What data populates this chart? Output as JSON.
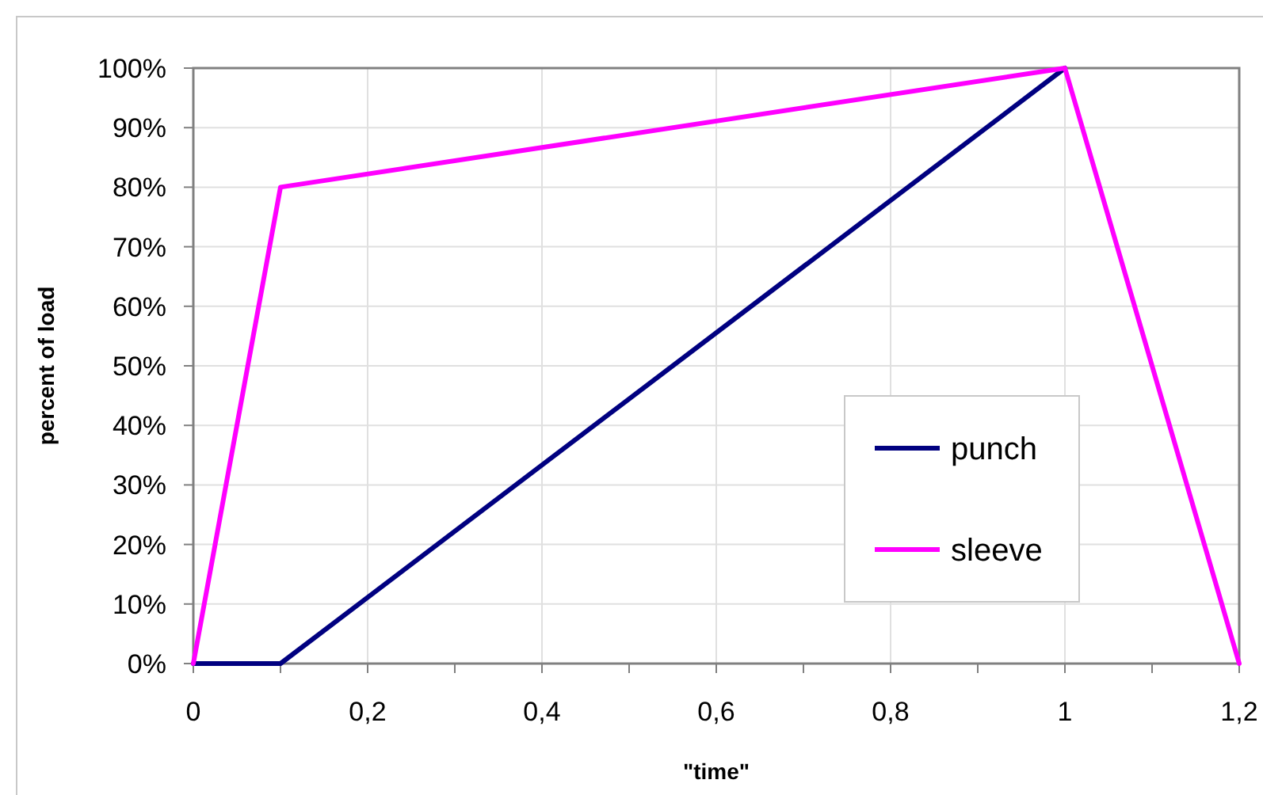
{
  "chart_data": {
    "type": "line",
    "xlabel": "\"time\"",
    "ylabel": "percent of load",
    "xlim": [
      0,
      1.2
    ],
    "xticks": [
      0,
      {
        "value": 0.1,
        "label": null
      },
      {
        "value": 0.2,
        "label": "0,2"
      },
      {
        "value": 0.3,
        "label": null
      },
      {
        "value": 0.4,
        "label": "0,4"
      },
      {
        "value": 0.5,
        "label": null
      },
      {
        "value": 0.6,
        "label": "0,6"
      },
      {
        "value": 0.7,
        "label": null
      },
      {
        "value": 0.8,
        "label": "0,8"
      },
      {
        "value": 0.9,
        "label": null
      },
      1,
      {
        "value": 1.1,
        "label": null
      },
      {
        "value": 1.2,
        "label": "1,2"
      }
    ],
    "ylim": [
      0,
      100
    ],
    "yticks": [
      {
        "value": 0,
        "label": "0%"
      },
      {
        "value": 10,
        "label": "10%"
      },
      {
        "value": 20,
        "label": "20%"
      },
      {
        "value": 30,
        "label": "30%"
      },
      {
        "value": 40,
        "label": "40%"
      },
      {
        "value": 50,
        "label": "50%"
      },
      {
        "value": 60,
        "label": "60%"
      },
      {
        "value": 70,
        "label": "70%"
      },
      {
        "value": 80,
        "label": "80%"
      },
      {
        "value": 90,
        "label": "90%"
      },
      {
        "value": 100,
        "label": "100%"
      }
    ],
    "grid": true,
    "legend": "right",
    "marker": "none",
    "line_style": "solid",
    "series": [
      {
        "name": "punch",
        "color": "#000080",
        "x": [
          0,
          0.1,
          1
        ],
        "values": [
          0,
          0,
          100
        ]
      },
      {
        "name": "sleeve",
        "color": "#ff00ff",
        "x": [
          0,
          0.1,
          1,
          1.2
        ],
        "values": [
          0,
          80,
          100,
          0
        ]
      }
    ]
  }
}
